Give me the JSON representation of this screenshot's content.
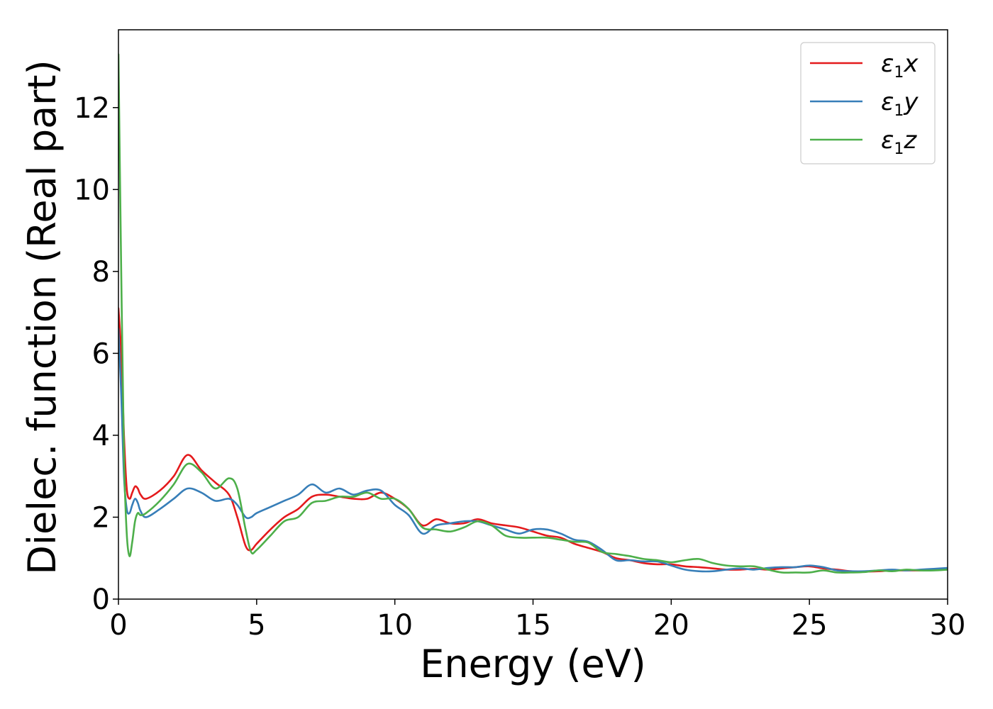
{
  "chart_data": {
    "type": "line",
    "xlabel": "Energy (eV)",
    "ylabel": "Dielec. function (Real part)",
    "xlim": [
      0,
      30
    ],
    "ylim": [
      0,
      13.9
    ],
    "xticks": [
      0,
      5,
      10,
      15,
      20,
      25,
      30
    ],
    "yticks": [
      0,
      2,
      4,
      6,
      8,
      10,
      12
    ],
    "grid": false,
    "legend_position": "top-right",
    "series": [
      {
        "name": "ε1x",
        "legend": {
          "base": "ε",
          "sub": "1",
          "var": "x"
        },
        "color": "#e41a1c",
        "x": [
          0,
          0.1,
          0.2,
          0.3,
          0.4,
          0.5,
          0.6,
          0.7,
          0.8,
          1.0,
          1.5,
          2.0,
          2.5,
          3.0,
          3.5,
          4.0,
          4.3,
          4.6,
          4.8,
          5.0,
          5.5,
          6.0,
          6.5,
          7.0,
          7.5,
          8.0,
          8.5,
          9.0,
          9.5,
          10.0,
          10.5,
          11.0,
          11.5,
          12.0,
          12.5,
          13.0,
          13.5,
          14.0,
          14.5,
          15.0,
          15.5,
          16.0,
          16.5,
          17.0,
          17.5,
          18.0,
          18.5,
          19.0,
          19.5,
          20.0,
          20.5,
          21.0,
          21.5,
          22.0,
          22.5,
          23.0,
          23.5,
          24.0,
          24.5,
          25.0,
          25.5,
          26.0,
          26.5,
          27.0,
          27.5,
          28.0,
          28.5,
          29.0,
          29.5,
          30.0
        ],
        "y": [
          7.1,
          6.0,
          4.0,
          2.7,
          2.45,
          2.6,
          2.75,
          2.7,
          2.55,
          2.45,
          2.65,
          3.0,
          3.52,
          3.15,
          2.85,
          2.55,
          2.0,
          1.3,
          1.2,
          1.35,
          1.7,
          2.0,
          2.2,
          2.5,
          2.55,
          2.5,
          2.45,
          2.45,
          2.6,
          2.45,
          2.2,
          1.8,
          1.95,
          1.85,
          1.85,
          1.95,
          1.85,
          1.8,
          1.75,
          1.65,
          1.55,
          1.5,
          1.35,
          1.25,
          1.15,
          1.0,
          0.95,
          0.88,
          0.85,
          0.85,
          0.8,
          0.78,
          0.75,
          0.72,
          0.72,
          0.74,
          0.72,
          0.75,
          0.78,
          0.8,
          0.75,
          0.72,
          0.68,
          0.67,
          0.68,
          0.7,
          0.7,
          0.7,
          0.72,
          0.73
        ]
      },
      {
        "name": "ε1y",
        "legend": {
          "base": "ε",
          "sub": "1",
          "var": "y"
        },
        "color": "#377eb8",
        "x": [
          0,
          0.1,
          0.2,
          0.3,
          0.4,
          0.5,
          0.6,
          0.7,
          0.8,
          1.0,
          1.5,
          2.0,
          2.5,
          3.0,
          3.5,
          4.0,
          4.3,
          4.6,
          4.8,
          5.0,
          5.5,
          6.0,
          6.5,
          7.0,
          7.5,
          8.0,
          8.5,
          9.0,
          9.5,
          10.0,
          10.5,
          11.0,
          11.5,
          12.0,
          12.5,
          13.0,
          13.5,
          14.0,
          14.5,
          15.0,
          15.5,
          16.0,
          16.5,
          17.0,
          17.5,
          18.0,
          18.5,
          19.0,
          19.5,
          20.0,
          20.5,
          21.0,
          21.5,
          22.0,
          22.5,
          23.0,
          23.5,
          24.0,
          24.5,
          25.0,
          25.5,
          26.0,
          26.5,
          27.0,
          27.5,
          28.0,
          28.5,
          29.0,
          29.5,
          30.0
        ],
        "y": [
          6.6,
          5.0,
          3.0,
          2.2,
          2.1,
          2.3,
          2.45,
          2.35,
          2.15,
          2.0,
          2.2,
          2.45,
          2.7,
          2.6,
          2.4,
          2.45,
          2.3,
          2.0,
          2.0,
          2.1,
          2.25,
          2.4,
          2.55,
          2.8,
          2.6,
          2.7,
          2.55,
          2.65,
          2.65,
          2.3,
          2.05,
          1.6,
          1.8,
          1.85,
          1.9,
          1.9,
          1.8,
          1.7,
          1.6,
          1.7,
          1.7,
          1.6,
          1.45,
          1.4,
          1.2,
          0.95,
          0.95,
          0.92,
          0.92,
          0.82,
          0.72,
          0.68,
          0.68,
          0.72,
          0.75,
          0.72,
          0.76,
          0.78,
          0.78,
          0.82,
          0.78,
          0.7,
          0.68,
          0.68,
          0.7,
          0.72,
          0.7,
          0.72,
          0.74,
          0.76
        ]
      },
      {
        "name": "ε1z",
        "legend": {
          "base": "ε",
          "sub": "1",
          "var": "z"
        },
        "color": "#4daf4a",
        "x": [
          0,
          0.1,
          0.2,
          0.3,
          0.4,
          0.5,
          0.6,
          0.7,
          0.8,
          1.0,
          1.5,
          2.0,
          2.5,
          3.0,
          3.5,
          4.0,
          4.3,
          4.6,
          4.8,
          5.0,
          5.5,
          6.0,
          6.5,
          7.0,
          7.5,
          8.0,
          8.5,
          9.0,
          9.5,
          10.0,
          10.5,
          11.0,
          11.5,
          12.0,
          12.5,
          13.0,
          13.5,
          14.0,
          14.5,
          15.0,
          15.5,
          16.0,
          16.5,
          17.0,
          17.5,
          18.0,
          18.5,
          19.0,
          19.5,
          20.0,
          20.5,
          21.0,
          21.5,
          22.0,
          22.5,
          23.0,
          23.5,
          24.0,
          24.5,
          25.0,
          25.5,
          26.0,
          26.5,
          27.0,
          27.5,
          28.0,
          28.5,
          29.0,
          29.5,
          30.0
        ],
        "y": [
          13.3,
          8.0,
          3.5,
          1.6,
          1.05,
          1.4,
          1.9,
          2.1,
          2.05,
          2.1,
          2.4,
          2.8,
          3.3,
          3.1,
          2.7,
          2.95,
          2.7,
          1.7,
          1.15,
          1.2,
          1.55,
          1.9,
          2.0,
          2.35,
          2.4,
          2.5,
          2.5,
          2.6,
          2.45,
          2.45,
          2.2,
          1.75,
          1.7,
          1.65,
          1.75,
          1.9,
          1.8,
          1.55,
          1.5,
          1.5,
          1.5,
          1.45,
          1.4,
          1.38,
          1.15,
          1.1,
          1.05,
          0.98,
          0.95,
          0.9,
          0.95,
          0.98,
          0.88,
          0.82,
          0.8,
          0.8,
          0.72,
          0.65,
          0.65,
          0.65,
          0.7,
          0.65,
          0.65,
          0.66,
          0.7,
          0.68,
          0.72,
          0.7,
          0.7,
          0.72
        ]
      }
    ]
  }
}
